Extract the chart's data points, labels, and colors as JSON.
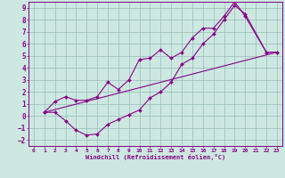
{
  "xlabel": "Windchill (Refroidissement éolien,°C)",
  "bg_color": "#cce8e0",
  "line_color": "#880088",
  "grid_color": "#99bbbb",
  "xlim": [
    -0.5,
    23.5
  ],
  "ylim": [
    -2.5,
    9.5
  ],
  "xticks": [
    0,
    1,
    2,
    3,
    4,
    5,
    6,
    7,
    8,
    9,
    10,
    11,
    12,
    13,
    14,
    15,
    16,
    17,
    18,
    19,
    20,
    21,
    22,
    23
  ],
  "yticks": [
    -2,
    -1,
    0,
    1,
    2,
    3,
    4,
    5,
    6,
    7,
    8,
    9
  ],
  "series1_x": [
    1,
    2,
    3,
    4,
    5,
    6,
    7,
    8,
    9,
    10,
    11,
    12,
    13,
    14,
    15,
    16,
    17,
    18,
    19,
    20,
    22,
    23
  ],
  "series1_y": [
    0.3,
    0.3,
    -0.4,
    -1.2,
    -1.6,
    -1.5,
    -0.7,
    -0.3,
    0.1,
    0.5,
    1.5,
    2.0,
    2.8,
    4.3,
    4.8,
    6.0,
    6.8,
    8.0,
    9.2,
    8.5,
    5.3,
    5.3
  ],
  "series2_x": [
    1,
    2,
    3,
    4,
    5,
    6,
    7,
    8,
    9,
    10,
    11,
    12,
    13,
    14,
    15,
    16,
    17,
    18,
    19,
    20,
    22,
    23
  ],
  "series2_y": [
    0.3,
    1.2,
    1.6,
    1.3,
    1.3,
    1.6,
    2.8,
    2.2,
    3.0,
    4.7,
    4.8,
    5.5,
    4.8,
    5.3,
    6.5,
    7.3,
    7.3,
    8.3,
    9.5,
    8.3,
    5.3,
    5.3
  ],
  "series3_x": [
    1,
    23
  ],
  "series3_y": [
    0.3,
    5.3
  ],
  "markersize": 2.0,
  "linewidth": 0.8
}
